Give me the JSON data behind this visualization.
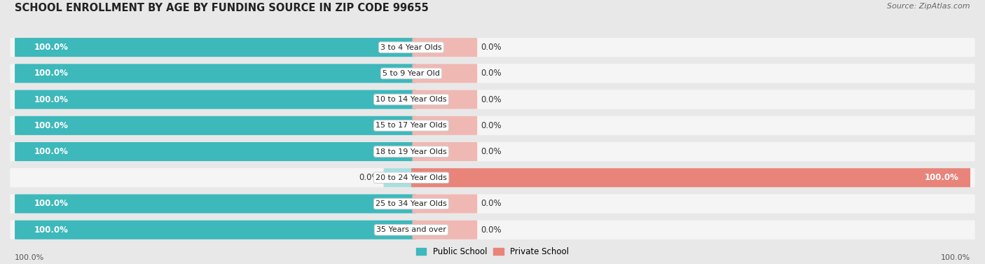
{
  "title": "SCHOOL ENROLLMENT BY AGE BY FUNDING SOURCE IN ZIP CODE 99655",
  "source_text": "Source: ZipAtlas.com",
  "categories": [
    "3 to 4 Year Olds",
    "5 to 9 Year Old",
    "10 to 14 Year Olds",
    "15 to 17 Year Olds",
    "18 to 19 Year Olds",
    "20 to 24 Year Olds",
    "25 to 34 Year Olds",
    "35 Years and over"
  ],
  "public_values": [
    100.0,
    100.0,
    100.0,
    100.0,
    100.0,
    0.0,
    100.0,
    100.0
  ],
  "private_values": [
    0.0,
    0.0,
    0.0,
    0.0,
    0.0,
    100.0,
    0.0,
    0.0
  ],
  "public_color": "#3db8bb",
  "public_color_light": "#a8dfe0",
  "private_color": "#e8847a",
  "private_bg_color": "#f0b8b3",
  "public_label": "Public School",
  "private_label": "Private School",
  "background_color": "#e8e8e8",
  "row_bg_color": "#f5f5f5",
  "title_fontsize": 10.5,
  "source_fontsize": 8,
  "bar_label_fontsize": 8.5,
  "category_fontsize": 8,
  "legend_fontsize": 8.5,
  "axis_label_fontsize": 8
}
